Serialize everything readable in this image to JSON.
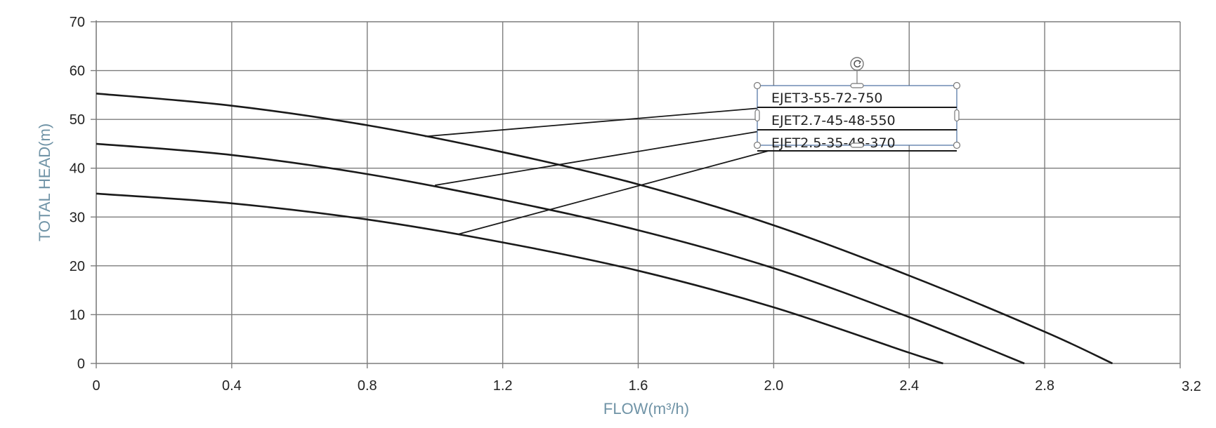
{
  "chart_data": {
    "type": "line",
    "title": "",
    "xlabel": "FLOW(m³/h)",
    "ylabel": "TOTAL HEAD(m)",
    "xlim": [
      0,
      3.2
    ],
    "ylim": [
      0,
      70
    ],
    "x_ticks": [
      "0",
      "0.4",
      "0.8",
      "1.2",
      "1.6",
      "2.0",
      "2.4",
      "2.8",
      "3.2"
    ],
    "y_ticks": [
      "0",
      "10",
      "20",
      "30",
      "40",
      "50",
      "60",
      "70"
    ],
    "grid": true,
    "legend_position": "top-right",
    "series": [
      {
        "name": "EJET3-55-72-750",
        "x": [
          0,
          0.4,
          0.8,
          1.2,
          1.6,
          2.0,
          2.4,
          2.8,
          3.0
        ],
        "y": [
          55.3,
          52.8,
          48.8,
          43.3,
          36.7,
          28.3,
          18.0,
          6.5,
          0
        ],
        "label_anchor": [
          0.97,
          46.5
        ]
      },
      {
        "name": "EJET2.7-45-48-550",
        "x": [
          0,
          0.4,
          0.8,
          1.2,
          1.6,
          2.0,
          2.4,
          2.74
        ],
        "y": [
          45.0,
          42.7,
          38.8,
          33.5,
          27.3,
          19.5,
          9.5,
          0
        ],
        "label_anchor": [
          1.0,
          36.5
        ]
      },
      {
        "name": "EJET2.5-35-48-370",
        "x": [
          0,
          0.4,
          0.8,
          1.2,
          1.6,
          2.0,
          2.4,
          2.5
        ],
        "y": [
          34.8,
          32.8,
          29.5,
          24.8,
          19.0,
          11.5,
          2.2,
          0
        ],
        "label_anchor": [
          1.07,
          26.5
        ]
      }
    ]
  }
}
